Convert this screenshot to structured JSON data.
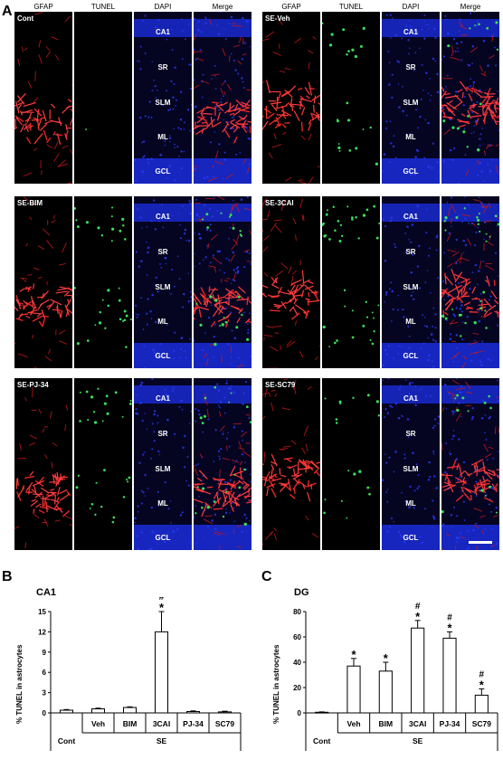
{
  "figure": {
    "panel_a": "A",
    "panel_b": "B",
    "panel_c": "C",
    "columns": [
      "GFAP",
      "TUNEL",
      "DAPI",
      "Merge"
    ],
    "groups": [
      {
        "label": "Cont",
        "layers": [
          "CA1",
          "SR",
          "SLM",
          "ML",
          "GCL"
        ]
      },
      {
        "label": "SE-Veh",
        "layers": [
          "CA1",
          "SR",
          "SLM",
          "ML",
          "GCL"
        ]
      },
      {
        "label": "SE-BIM",
        "layers": [
          "CA1",
          "SR",
          "SLM",
          "ML",
          "GCL"
        ]
      },
      {
        "label": "SE-3CAI",
        "layers": [
          "CA1",
          "SR",
          "SLM",
          "ML",
          "GCL"
        ]
      },
      {
        "label": "SE-PJ-34",
        "layers": [
          "CA1",
          "SR",
          "SLM",
          "ML",
          "GCL"
        ]
      },
      {
        "label": "SE-SC79",
        "layers": [
          "CA1",
          "SR",
          "SLM",
          "ML",
          "GCL"
        ]
      }
    ]
  },
  "chart_data": [
    {
      "type": "bar",
      "title": "CA1",
      "ylabel": "% TUNEL in astrocytes",
      "categories": [
        "Cont",
        "Veh",
        "BIM",
        "3CAI",
        "PJ-34",
        "SC79"
      ],
      "group_label": "SE",
      "values": [
        0.4,
        0.6,
        0.8,
        12.0,
        0.2,
        0.15
      ],
      "errors": [
        0.1,
        0.1,
        0.1,
        3.0,
        0.1,
        0.1
      ],
      "annotations": [
        "",
        "",
        "",
        "#*",
        "",
        ""
      ],
      "ylim": [
        0,
        15
      ],
      "yticks": [
        0,
        3,
        6,
        9,
        12,
        15
      ]
    },
    {
      "type": "bar",
      "title": "DG",
      "ylabel": "% TUNEL in astrocytes",
      "categories": [
        "Cont",
        "Veh",
        "BIM",
        "3CAI",
        "PJ-34",
        "SC79"
      ],
      "group_label": "SE",
      "values": [
        0.5,
        37,
        33,
        67,
        59,
        14
      ],
      "errors": [
        0.3,
        6,
        7,
        6,
        5,
        5
      ],
      "annotations": [
        "",
        "*",
        "*",
        "#*",
        "#*",
        "#*"
      ],
      "ylim": [
        0,
        80
      ],
      "yticks": [
        0,
        20,
        40,
        60,
        80
      ]
    }
  ]
}
